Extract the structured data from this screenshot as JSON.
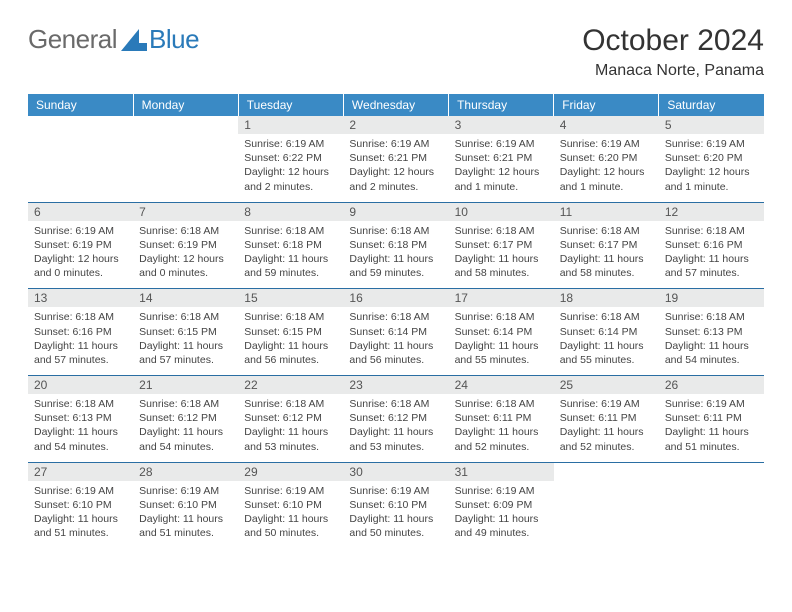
{
  "logo": {
    "text1": "General",
    "text2": "Blue"
  },
  "title": "October 2024",
  "location": "Manaca Norte, Panama",
  "colors": {
    "header_bg": "#3a8ac5",
    "header_text": "#ffffff",
    "daynum_bg": "#e9eaea",
    "rule": "#2a6ea3",
    "body_text": "#444444",
    "logo_gray": "#6a6a6a",
    "logo_blue": "#2a7ab9"
  },
  "weekdays": [
    "Sunday",
    "Monday",
    "Tuesday",
    "Wednesday",
    "Thursday",
    "Friday",
    "Saturday"
  ],
  "weeks": [
    [
      {
        "empty": true
      },
      {
        "empty": true
      },
      {
        "n": "1",
        "sunrise": "Sunrise: 6:19 AM",
        "sunset": "Sunset: 6:22 PM",
        "daylight": "Daylight: 12 hours and 2 minutes."
      },
      {
        "n": "2",
        "sunrise": "Sunrise: 6:19 AM",
        "sunset": "Sunset: 6:21 PM",
        "daylight": "Daylight: 12 hours and 2 minutes."
      },
      {
        "n": "3",
        "sunrise": "Sunrise: 6:19 AM",
        "sunset": "Sunset: 6:21 PM",
        "daylight": "Daylight: 12 hours and 1 minute."
      },
      {
        "n": "4",
        "sunrise": "Sunrise: 6:19 AM",
        "sunset": "Sunset: 6:20 PM",
        "daylight": "Daylight: 12 hours and 1 minute."
      },
      {
        "n": "5",
        "sunrise": "Sunrise: 6:19 AM",
        "sunset": "Sunset: 6:20 PM",
        "daylight": "Daylight: 12 hours and 1 minute."
      }
    ],
    [
      {
        "n": "6",
        "sunrise": "Sunrise: 6:19 AM",
        "sunset": "Sunset: 6:19 PM",
        "daylight": "Daylight: 12 hours and 0 minutes."
      },
      {
        "n": "7",
        "sunrise": "Sunrise: 6:18 AM",
        "sunset": "Sunset: 6:19 PM",
        "daylight": "Daylight: 12 hours and 0 minutes."
      },
      {
        "n": "8",
        "sunrise": "Sunrise: 6:18 AM",
        "sunset": "Sunset: 6:18 PM",
        "daylight": "Daylight: 11 hours and 59 minutes."
      },
      {
        "n": "9",
        "sunrise": "Sunrise: 6:18 AM",
        "sunset": "Sunset: 6:18 PM",
        "daylight": "Daylight: 11 hours and 59 minutes."
      },
      {
        "n": "10",
        "sunrise": "Sunrise: 6:18 AM",
        "sunset": "Sunset: 6:17 PM",
        "daylight": "Daylight: 11 hours and 58 minutes."
      },
      {
        "n": "11",
        "sunrise": "Sunrise: 6:18 AM",
        "sunset": "Sunset: 6:17 PM",
        "daylight": "Daylight: 11 hours and 58 minutes."
      },
      {
        "n": "12",
        "sunrise": "Sunrise: 6:18 AM",
        "sunset": "Sunset: 6:16 PM",
        "daylight": "Daylight: 11 hours and 57 minutes."
      }
    ],
    [
      {
        "n": "13",
        "sunrise": "Sunrise: 6:18 AM",
        "sunset": "Sunset: 6:16 PM",
        "daylight": "Daylight: 11 hours and 57 minutes."
      },
      {
        "n": "14",
        "sunrise": "Sunrise: 6:18 AM",
        "sunset": "Sunset: 6:15 PM",
        "daylight": "Daylight: 11 hours and 57 minutes."
      },
      {
        "n": "15",
        "sunrise": "Sunrise: 6:18 AM",
        "sunset": "Sunset: 6:15 PM",
        "daylight": "Daylight: 11 hours and 56 minutes."
      },
      {
        "n": "16",
        "sunrise": "Sunrise: 6:18 AM",
        "sunset": "Sunset: 6:14 PM",
        "daylight": "Daylight: 11 hours and 56 minutes."
      },
      {
        "n": "17",
        "sunrise": "Sunrise: 6:18 AM",
        "sunset": "Sunset: 6:14 PM",
        "daylight": "Daylight: 11 hours and 55 minutes."
      },
      {
        "n": "18",
        "sunrise": "Sunrise: 6:18 AM",
        "sunset": "Sunset: 6:14 PM",
        "daylight": "Daylight: 11 hours and 55 minutes."
      },
      {
        "n": "19",
        "sunrise": "Sunrise: 6:18 AM",
        "sunset": "Sunset: 6:13 PM",
        "daylight": "Daylight: 11 hours and 54 minutes."
      }
    ],
    [
      {
        "n": "20",
        "sunrise": "Sunrise: 6:18 AM",
        "sunset": "Sunset: 6:13 PM",
        "daylight": "Daylight: 11 hours and 54 minutes."
      },
      {
        "n": "21",
        "sunrise": "Sunrise: 6:18 AM",
        "sunset": "Sunset: 6:12 PM",
        "daylight": "Daylight: 11 hours and 54 minutes."
      },
      {
        "n": "22",
        "sunrise": "Sunrise: 6:18 AM",
        "sunset": "Sunset: 6:12 PM",
        "daylight": "Daylight: 11 hours and 53 minutes."
      },
      {
        "n": "23",
        "sunrise": "Sunrise: 6:18 AM",
        "sunset": "Sunset: 6:12 PM",
        "daylight": "Daylight: 11 hours and 53 minutes."
      },
      {
        "n": "24",
        "sunrise": "Sunrise: 6:18 AM",
        "sunset": "Sunset: 6:11 PM",
        "daylight": "Daylight: 11 hours and 52 minutes."
      },
      {
        "n": "25",
        "sunrise": "Sunrise: 6:19 AM",
        "sunset": "Sunset: 6:11 PM",
        "daylight": "Daylight: 11 hours and 52 minutes."
      },
      {
        "n": "26",
        "sunrise": "Sunrise: 6:19 AM",
        "sunset": "Sunset: 6:11 PM",
        "daylight": "Daylight: 11 hours and 51 minutes."
      }
    ],
    [
      {
        "n": "27",
        "sunrise": "Sunrise: 6:19 AM",
        "sunset": "Sunset: 6:10 PM",
        "daylight": "Daylight: 11 hours and 51 minutes."
      },
      {
        "n": "28",
        "sunrise": "Sunrise: 6:19 AM",
        "sunset": "Sunset: 6:10 PM",
        "daylight": "Daylight: 11 hours and 51 minutes."
      },
      {
        "n": "29",
        "sunrise": "Sunrise: 6:19 AM",
        "sunset": "Sunset: 6:10 PM",
        "daylight": "Daylight: 11 hours and 50 minutes."
      },
      {
        "n": "30",
        "sunrise": "Sunrise: 6:19 AM",
        "sunset": "Sunset: 6:10 PM",
        "daylight": "Daylight: 11 hours and 50 minutes."
      },
      {
        "n": "31",
        "sunrise": "Sunrise: 6:19 AM",
        "sunset": "Sunset: 6:09 PM",
        "daylight": "Daylight: 11 hours and 49 minutes."
      },
      {
        "empty": true
      },
      {
        "empty": true
      }
    ]
  ]
}
